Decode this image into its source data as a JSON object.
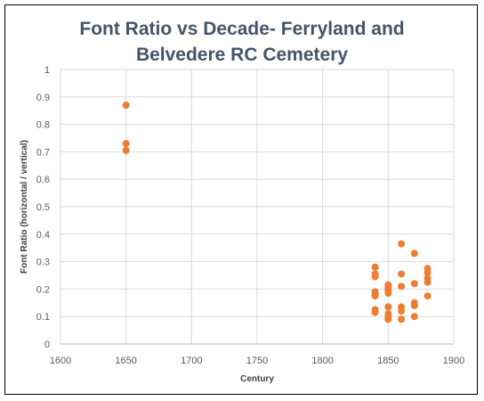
{
  "chart_data": {
    "type": "scatter",
    "title_line1": "Font Ratio vs Decade- Ferryland and",
    "title_line2": "Belvedere RC Cemetery",
    "xlabel": "Century",
    "ylabel": "Font Ratio (horizontal / vertical)",
    "xlim": [
      1600,
      1900
    ],
    "ylim": [
      0,
      1
    ],
    "x_ticks": [
      "1600",
      "1650",
      "1700",
      "1750",
      "1800",
      "1850",
      "1900"
    ],
    "y_ticks": [
      "0",
      "0.1",
      "0.2",
      "0.3",
      "0.4",
      "0.5",
      "0.6",
      "0.7",
      "0.8",
      "0.9",
      "1"
    ],
    "grid": true,
    "marker_color": "#ed7d31",
    "points": [
      {
        "x": 1650,
        "y": 0.87
      },
      {
        "x": 1650,
        "y": 0.73
      },
      {
        "x": 1650,
        "y": 0.705
      },
      {
        "x": 1840,
        "y": 0.28
      },
      {
        "x": 1840,
        "y": 0.255
      },
      {
        "x": 1840,
        "y": 0.245
      },
      {
        "x": 1840,
        "y": 0.19
      },
      {
        "x": 1840,
        "y": 0.18
      },
      {
        "x": 1840,
        "y": 0.175
      },
      {
        "x": 1840,
        "y": 0.125
      },
      {
        "x": 1840,
        "y": 0.115
      },
      {
        "x": 1850,
        "y": 0.215
      },
      {
        "x": 1850,
        "y": 0.205
      },
      {
        "x": 1850,
        "y": 0.195
      },
      {
        "x": 1850,
        "y": 0.185
      },
      {
        "x": 1850,
        "y": 0.135
      },
      {
        "x": 1850,
        "y": 0.11
      },
      {
        "x": 1850,
        "y": 0.1
      },
      {
        "x": 1850,
        "y": 0.09
      },
      {
        "x": 1860,
        "y": 0.365
      },
      {
        "x": 1860,
        "y": 0.255
      },
      {
        "x": 1860,
        "y": 0.21
      },
      {
        "x": 1860,
        "y": 0.135
      },
      {
        "x": 1860,
        "y": 0.12
      },
      {
        "x": 1860,
        "y": 0.09
      },
      {
        "x": 1870,
        "y": 0.33
      },
      {
        "x": 1870,
        "y": 0.22
      },
      {
        "x": 1870,
        "y": 0.15
      },
      {
        "x": 1870,
        "y": 0.14
      },
      {
        "x": 1870,
        "y": 0.1
      },
      {
        "x": 1880,
        "y": 0.275
      },
      {
        "x": 1880,
        "y": 0.26
      },
      {
        "x": 1880,
        "y": 0.24
      },
      {
        "x": 1880,
        "y": 0.225
      },
      {
        "x": 1880,
        "y": 0.175
      }
    ]
  }
}
